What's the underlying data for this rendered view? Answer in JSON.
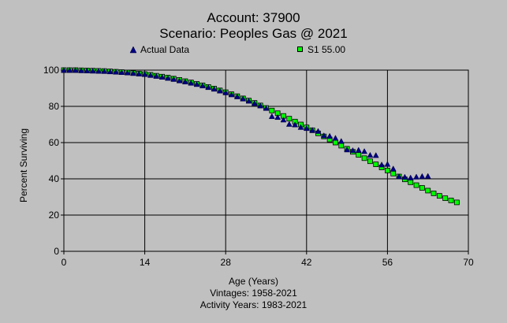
{
  "chart_data": {
    "type": "scatter",
    "title": "Account: 37900",
    "subtitle": "Scenario: Peoples Gas @ 2021",
    "xlabel": "Age (Years)",
    "ylabel": "Percent Surviving",
    "notes": [
      "Vintages: 1958-2021",
      "Activity Years: 1983-2021"
    ],
    "xlim": [
      0,
      70
    ],
    "ylim": [
      0,
      100
    ],
    "xticks": [
      "0",
      "14",
      "28",
      "42",
      "56",
      "70"
    ],
    "yticks": [
      "0",
      "20",
      "40",
      "60",
      "80",
      "100"
    ],
    "grid": true,
    "legend_placement": "top",
    "colors": {
      "background": "#c0c0c0",
      "actual": "#000080",
      "fit": "#00ff00",
      "fit_border": "#000000"
    },
    "series": [
      {
        "name": "Actual Data",
        "marker": "triangle",
        "x": [
          0,
          1,
          2,
          3,
          4,
          5,
          6,
          7,
          8,
          9,
          10,
          11,
          12,
          13,
          14,
          15,
          16,
          17,
          18,
          19,
          20,
          21,
          22,
          23,
          24,
          25,
          26,
          27,
          28,
          29,
          30,
          31,
          32,
          33,
          34,
          35,
          36,
          37,
          38,
          39,
          40,
          41,
          42,
          43,
          44,
          45,
          46,
          47,
          48,
          49,
          50,
          51,
          52,
          53,
          54,
          55,
          56,
          57,
          58,
          59,
          60,
          61,
          62,
          63
        ],
        "y": [
          100,
          100,
          100,
          99.8,
          99.7,
          99.6,
          99.5,
          99.4,
          99.2,
          99.0,
          98.8,
          98.6,
          98.3,
          98.0,
          97.7,
          97.2,
          96.7,
          96.2,
          95.6,
          95.0,
          94.2,
          93.6,
          92.9,
          92.2,
          91.4,
          90.5,
          89.6,
          88.6,
          87.6,
          86.5,
          85.4,
          84.2,
          83.0,
          81.7,
          80.4,
          79.0,
          74.5,
          74.0,
          72.6,
          70.2,
          69.9,
          68.5,
          67.9,
          66.9,
          66.3,
          63.9,
          63.6,
          62.5,
          60.8,
          56.1,
          55.7,
          55.9,
          55.2,
          53.1,
          53.0,
          47.8,
          48.1,
          45.6,
          41.3,
          41.0,
          40.6,
          41.1,
          41.4,
          41.5
        ]
      },
      {
        "name": "S1 55.00",
        "marker": "square",
        "x": [
          0,
          1,
          2,
          3,
          4,
          5,
          6,
          7,
          8,
          9,
          10,
          11,
          12,
          13,
          14,
          15,
          16,
          17,
          18,
          19,
          20,
          21,
          22,
          23,
          24,
          25,
          26,
          27,
          28,
          29,
          30,
          31,
          32,
          33,
          34,
          35,
          36,
          37,
          38,
          39,
          40,
          41,
          42,
          43,
          44,
          45,
          46,
          47,
          48,
          49,
          50,
          51,
          52,
          53,
          54,
          55,
          56,
          57,
          58,
          59,
          60,
          61,
          62,
          63,
          64,
          65,
          66,
          67,
          68
        ],
        "y": [
          100,
          100,
          100,
          99.9,
          99.8,
          99.7,
          99.6,
          99.5,
          99.3,
          99.1,
          98.9,
          98.7,
          98.4,
          98.1,
          97.8,
          97.4,
          96.9,
          96.4,
          95.9,
          95.3,
          94.6,
          93.9,
          93.2,
          92.4,
          91.6,
          90.7,
          89.8,
          88.8,
          87.8,
          86.7,
          85.6,
          84.4,
          83.2,
          81.9,
          80.5,
          79.1,
          77.7,
          76.2,
          74.7,
          73.2,
          71.6,
          70.0,
          68.4,
          66.8,
          65.1,
          63.4,
          61.7,
          60.0,
          58.3,
          56.6,
          54.9,
          53.2,
          51.4,
          49.7,
          48.0,
          46.3,
          44.6,
          42.9,
          41.3,
          39.7,
          38.1,
          36.5,
          35.0,
          33.5,
          32.0,
          30.6,
          29.3,
          28.1,
          27.0
        ]
      }
    ]
  }
}
